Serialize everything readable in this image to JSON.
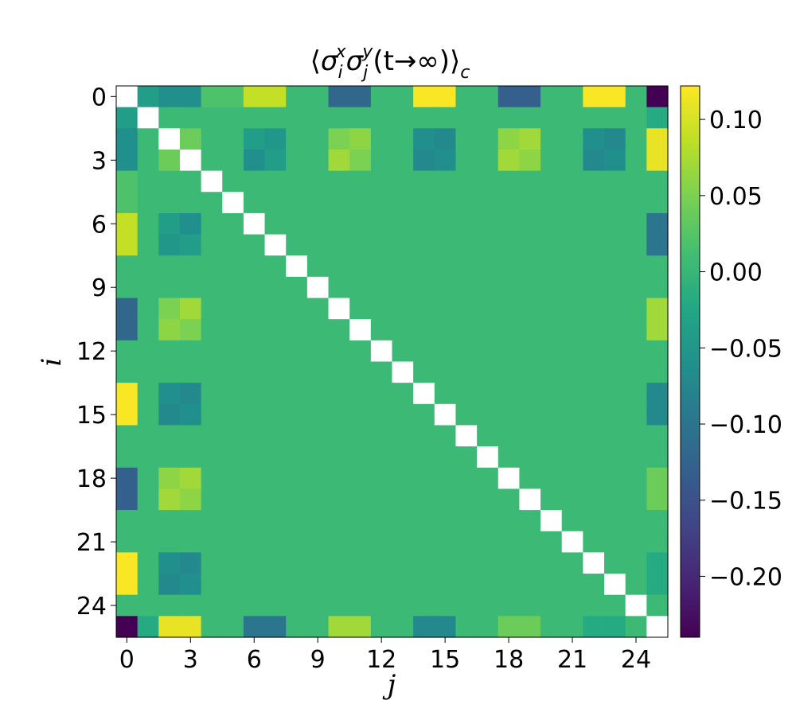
{
  "chart_data": {
    "type": "heatmap",
    "title": "⟨σᵢˣ σⱼʸ (t→∞)⟩c",
    "title_parts": {
      "open": "⟨",
      "sigma": "σ",
      "i": "i",
      "x": "x",
      "j": "j",
      "y": "y",
      "args": "(t→∞)",
      "close": "⟩",
      "c": "c"
    },
    "xlabel": "j",
    "ylabel": "i",
    "n": 26,
    "x_ticks": [
      "0",
      "3",
      "6",
      "9",
      "12",
      "15",
      "18",
      "21",
      "24"
    ],
    "y_ticks": [
      "0",
      "3",
      "6",
      "9",
      "12",
      "15",
      "18",
      "21",
      "24"
    ],
    "tick_values": [
      0,
      3,
      6,
      9,
      12,
      15,
      18,
      21,
      24
    ],
    "colorbar": {
      "vmin": -0.24,
      "vmax": 0.122,
      "ticks": [
        0.1,
        0.05,
        0.0,
        -0.05,
        -0.1,
        -0.15,
        -0.2
      ],
      "tick_labels": [
        "0.10",
        "0.05",
        "0.00",
        "−0.05",
        "−0.10",
        "−0.15",
        "−0.20"
      ],
      "colormap": "viridis"
    },
    "diagonal": "blank",
    "notable_values": [
      {
        "i": 0,
        "j": 1,
        "value": -0.04
      },
      {
        "i": 0,
        "j": 2,
        "value": -0.06
      },
      {
        "i": 0,
        "j": 3,
        "value": -0.06
      },
      {
        "i": 0,
        "j": 4,
        "value": 0.02
      },
      {
        "i": 0,
        "j": 5,
        "value": 0.02
      },
      {
        "i": 0,
        "j": 6,
        "value": 0.09
      },
      {
        "i": 0,
        "j": 7,
        "value": 0.09
      },
      {
        "i": 0,
        "j": 10,
        "value": -0.12
      },
      {
        "i": 0,
        "j": 11,
        "value": -0.12
      },
      {
        "i": 0,
        "j": 14,
        "value": 0.12
      },
      {
        "i": 0,
        "j": 15,
        "value": 0.12
      },
      {
        "i": 0,
        "j": 18,
        "value": -0.13
      },
      {
        "i": 0,
        "j": 19,
        "value": -0.13
      },
      {
        "i": 0,
        "j": 22,
        "value": 0.12
      },
      {
        "i": 0,
        "j": 23,
        "value": 0.12
      },
      {
        "i": 0,
        "j": 25,
        "value": -0.24
      },
      {
        "i": 1,
        "j": 25,
        "value": -0.02
      },
      {
        "i": 2,
        "j": 3,
        "value": 0.04
      },
      {
        "i": 2,
        "j": 6,
        "value": -0.04
      },
      {
        "i": 2,
        "j": 7,
        "value": -0.05
      },
      {
        "i": 2,
        "j": 10,
        "value": 0.05
      },
      {
        "i": 2,
        "j": 11,
        "value": 0.06
      },
      {
        "i": 2,
        "j": 14,
        "value": -0.06
      },
      {
        "i": 2,
        "j": 15,
        "value": -0.07
      },
      {
        "i": 2,
        "j": 18,
        "value": 0.06
      },
      {
        "i": 2,
        "j": 19,
        "value": 0.07
      },
      {
        "i": 2,
        "j": 22,
        "value": -0.06
      },
      {
        "i": 2,
        "j": 23,
        "value": -0.07
      },
      {
        "i": 2,
        "j": 25,
        "value": 0.11
      },
      {
        "i": 3,
        "j": 6,
        "value": -0.06
      },
      {
        "i": 3,
        "j": 7,
        "value": -0.04
      },
      {
        "i": 3,
        "j": 10,
        "value": 0.07
      },
      {
        "i": 3,
        "j": 11,
        "value": 0.05
      },
      {
        "i": 3,
        "j": 14,
        "value": -0.07
      },
      {
        "i": 3,
        "j": 15,
        "value": -0.06
      },
      {
        "i": 3,
        "j": 18,
        "value": 0.07
      },
      {
        "i": 3,
        "j": 19,
        "value": 0.06
      },
      {
        "i": 3,
        "j": 22,
        "value": -0.07
      },
      {
        "i": 3,
        "j": 23,
        "value": -0.06
      },
      {
        "i": 3,
        "j": 25,
        "value": 0.11
      },
      {
        "i": 6,
        "j": 25,
        "value": -0.1
      },
      {
        "i": 7,
        "j": 25,
        "value": -0.1
      },
      {
        "i": 10,
        "j": 25,
        "value": 0.07
      },
      {
        "i": 11,
        "j": 25,
        "value": 0.07
      },
      {
        "i": 14,
        "j": 25,
        "value": -0.07
      },
      {
        "i": 15,
        "j": 25,
        "value": -0.07
      },
      {
        "i": 18,
        "j": 25,
        "value": 0.04
      },
      {
        "i": 19,
        "j": 25,
        "value": 0.04
      },
      {
        "i": 22,
        "j": 25,
        "value": -0.02
      },
      {
        "i": 23,
        "j": 25,
        "value": -0.02
      }
    ]
  }
}
